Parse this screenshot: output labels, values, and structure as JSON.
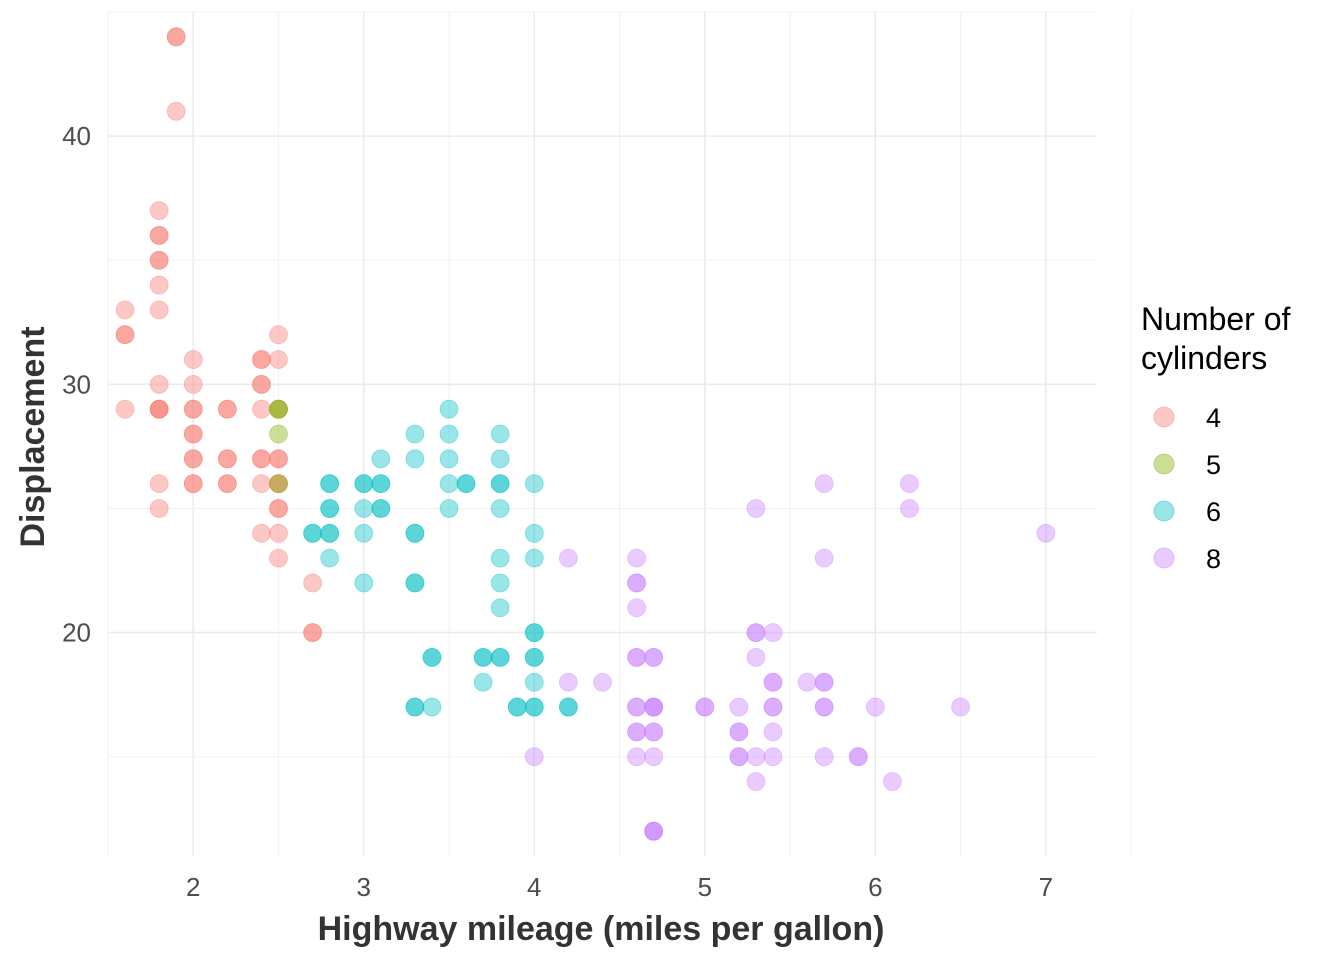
{
  "chart_data": {
    "type": "scatter",
    "xlabel": "Highway mileage (miles per gallon)",
    "ylabel": "Displacement",
    "xlim": [
      1.5,
      7.3
    ],
    "ylim": [
      11,
      45
    ],
    "x_ticks": [
      2,
      3,
      4,
      5,
      6,
      7
    ],
    "y_ticks": [
      20,
      30,
      40
    ],
    "grid": true,
    "legend": {
      "title_lines": [
        "Number of",
        "cylinders"
      ],
      "placement": "right"
    },
    "series": [
      {
        "name": "4",
        "color": "#F8766D",
        "points": [
          [
            1.9,
            44
          ],
          [
            1.9,
            44
          ],
          [
            1.9,
            41
          ],
          [
            1.8,
            37
          ],
          [
            1.8,
            36
          ],
          [
            1.8,
            36
          ],
          [
            1.8,
            35
          ],
          [
            1.8,
            35
          ],
          [
            1.8,
            34
          ],
          [
            1.8,
            33
          ],
          [
            1.6,
            33
          ],
          [
            1.6,
            32
          ],
          [
            1.6,
            32
          ],
          [
            1.6,
            29
          ],
          [
            1.8,
            30
          ],
          [
            1.8,
            29
          ],
          [
            1.8,
            29
          ],
          [
            1.8,
            29
          ],
          [
            1.8,
            26
          ],
          [
            1.8,
            25
          ],
          [
            2.0,
            31
          ],
          [
            2.0,
            30
          ],
          [
            2.0,
            29
          ],
          [
            2.0,
            29
          ],
          [
            2.0,
            28
          ],
          [
            2.0,
            28
          ],
          [
            2.0,
            27
          ],
          [
            2.0,
            27
          ],
          [
            2.0,
            26
          ],
          [
            2.0,
            26
          ],
          [
            2.2,
            29
          ],
          [
            2.2,
            29
          ],
          [
            2.2,
            27
          ],
          [
            2.2,
            27
          ],
          [
            2.2,
            26
          ],
          [
            2.2,
            26
          ],
          [
            2.4,
            31
          ],
          [
            2.4,
            31
          ],
          [
            2.4,
            30
          ],
          [
            2.4,
            30
          ],
          [
            2.4,
            29
          ],
          [
            2.4,
            27
          ],
          [
            2.4,
            27
          ],
          [
            2.4,
            26
          ],
          [
            2.4,
            24
          ],
          [
            2.5,
            32
          ],
          [
            2.5,
            31
          ],
          [
            2.5,
            29
          ],
          [
            2.5,
            27
          ],
          [
            2.5,
            27
          ],
          [
            2.5,
            26
          ],
          [
            2.5,
            26
          ],
          [
            2.5,
            25
          ],
          [
            2.5,
            25
          ],
          [
            2.5,
            24
          ],
          [
            2.5,
            23
          ],
          [
            2.7,
            22
          ],
          [
            2.7,
            20
          ],
          [
            2.7,
            20
          ]
        ]
      },
      {
        "name": "5",
        "color": "#7CAE00",
        "points": [
          [
            2.5,
            29
          ],
          [
            2.5,
            29
          ],
          [
            2.5,
            28
          ],
          [
            2.5,
            26
          ]
        ]
      },
      {
        "name": "6",
        "color": "#00BFC4",
        "points": [
          [
            2.7,
            24
          ],
          [
            2.7,
            24
          ],
          [
            2.8,
            26
          ],
          [
            2.8,
            26
          ],
          [
            2.8,
            25
          ],
          [
            2.8,
            25
          ],
          [
            2.8,
            24
          ],
          [
            2.8,
            24
          ],
          [
            2.8,
            23
          ],
          [
            3.0,
            26
          ],
          [
            3.0,
            26
          ],
          [
            3.0,
            25
          ],
          [
            3.0,
            24
          ],
          [
            3.0,
            22
          ],
          [
            3.1,
            27
          ],
          [
            3.1,
            26
          ],
          [
            3.1,
            26
          ],
          [
            3.1,
            25
          ],
          [
            3.1,
            25
          ],
          [
            3.3,
            28
          ],
          [
            3.3,
            27
          ],
          [
            3.3,
            24
          ],
          [
            3.3,
            24
          ],
          [
            3.3,
            22
          ],
          [
            3.3,
            22
          ],
          [
            3.3,
            17
          ],
          [
            3.3,
            17
          ],
          [
            3.4,
            19
          ],
          [
            3.4,
            19
          ],
          [
            3.4,
            17
          ],
          [
            3.5,
            29
          ],
          [
            3.5,
            28
          ],
          [
            3.5,
            27
          ],
          [
            3.5,
            26
          ],
          [
            3.5,
            25
          ],
          [
            3.6,
            26
          ],
          [
            3.6,
            26
          ],
          [
            3.7,
            19
          ],
          [
            3.7,
            19
          ],
          [
            3.7,
            18
          ],
          [
            3.8,
            28
          ],
          [
            3.8,
            27
          ],
          [
            3.8,
            26
          ],
          [
            3.8,
            26
          ],
          [
            3.8,
            25
          ],
          [
            3.8,
            23
          ],
          [
            3.8,
            22
          ],
          [
            3.8,
            21
          ],
          [
            3.8,
            19
          ],
          [
            3.8,
            19
          ],
          [
            3.9,
            17
          ],
          [
            3.9,
            17
          ],
          [
            4.0,
            26
          ],
          [
            4.0,
            24
          ],
          [
            4.0,
            23
          ],
          [
            4.0,
            20
          ],
          [
            4.0,
            20
          ],
          [
            4.0,
            19
          ],
          [
            4.0,
            19
          ],
          [
            4.0,
            18
          ],
          [
            4.0,
            17
          ],
          [
            4.0,
            17
          ],
          [
            4.2,
            17
          ],
          [
            4.2,
            17
          ]
        ]
      },
      {
        "name": "8",
        "color": "#C77CFF",
        "points": [
          [
            4.0,
            15
          ],
          [
            4.2,
            23
          ],
          [
            4.2,
            18
          ],
          [
            4.4,
            18
          ],
          [
            4.6,
            23
          ],
          [
            4.6,
            22
          ],
          [
            4.6,
            22
          ],
          [
            4.6,
            21
          ],
          [
            4.6,
            19
          ],
          [
            4.6,
            19
          ],
          [
            4.6,
            17
          ],
          [
            4.6,
            17
          ],
          [
            4.6,
            16
          ],
          [
            4.6,
            16
          ],
          [
            4.6,
            15
          ],
          [
            4.7,
            19
          ],
          [
            4.7,
            19
          ],
          [
            4.7,
            17
          ],
          [
            4.7,
            17
          ],
          [
            4.7,
            17
          ],
          [
            4.7,
            16
          ],
          [
            4.7,
            16
          ],
          [
            4.7,
            15
          ],
          [
            4.7,
            12
          ],
          [
            4.7,
            12
          ],
          [
            4.7,
            12
          ],
          [
            5.0,
            17
          ],
          [
            5.0,
            17
          ],
          [
            5.2,
            17
          ],
          [
            5.2,
            16
          ],
          [
            5.2,
            16
          ],
          [
            5.2,
            15
          ],
          [
            5.2,
            15
          ],
          [
            5.3,
            25
          ],
          [
            5.3,
            20
          ],
          [
            5.3,
            20
          ],
          [
            5.3,
            19
          ],
          [
            5.3,
            15
          ],
          [
            5.3,
            14
          ],
          [
            5.4,
            20
          ],
          [
            5.4,
            18
          ],
          [
            5.4,
            18
          ],
          [
            5.4,
            17
          ],
          [
            5.4,
            17
          ],
          [
            5.4,
            16
          ],
          [
            5.4,
            15
          ],
          [
            5.6,
            18
          ],
          [
            5.7,
            26
          ],
          [
            5.7,
            23
          ],
          [
            5.7,
            18
          ],
          [
            5.7,
            18
          ],
          [
            5.7,
            17
          ],
          [
            5.7,
            17
          ],
          [
            5.7,
            15
          ],
          [
            5.9,
            15
          ],
          [
            5.9,
            15
          ],
          [
            6.0,
            17
          ],
          [
            6.1,
            14
          ],
          [
            6.2,
            26
          ],
          [
            6.2,
            25
          ],
          [
            6.5,
            17
          ],
          [
            7.0,
            24
          ]
        ]
      }
    ]
  }
}
